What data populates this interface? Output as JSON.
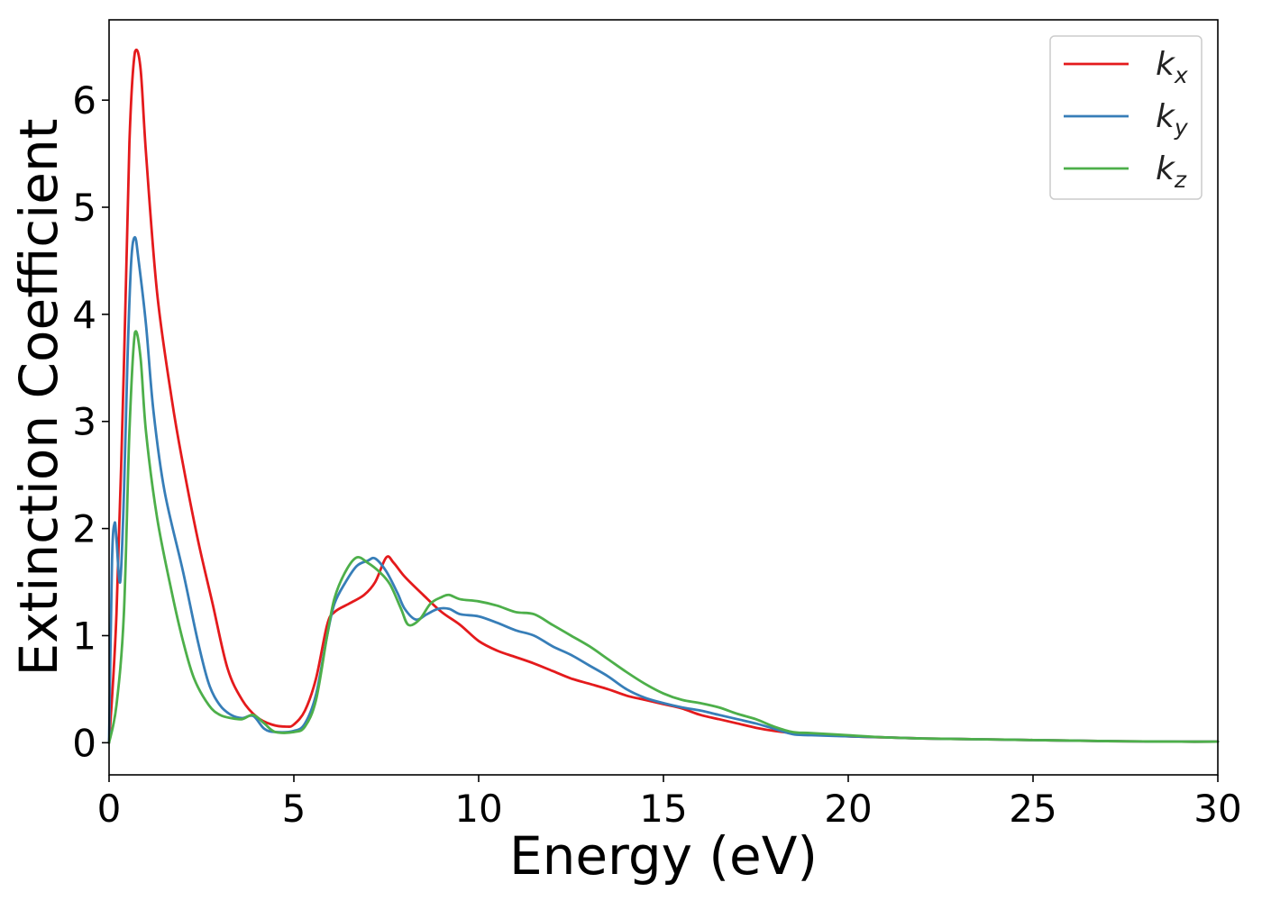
{
  "chart_data": {
    "type": "line",
    "xlabel": "Energy (eV)",
    "ylabel": "Extinction Coefficient",
    "xlim": [
      0,
      30
    ],
    "ylim": [
      -0.3,
      6.75
    ],
    "xticks": [
      "0",
      "5",
      "10",
      "15",
      "20",
      "25",
      "30"
    ],
    "yticks": [
      "0",
      "1",
      "2",
      "3",
      "4",
      "5",
      "6"
    ],
    "grid": false,
    "legend_position": "top-right",
    "series": [
      {
        "name": "k",
        "name_subscript": "x",
        "color": "#e41a1c",
        "x": [
          0,
          0.2,
          0.4,
          0.55,
          0.7,
          0.85,
          1.0,
          1.3,
          1.7,
          2.0,
          2.4,
          2.8,
          3.2,
          3.6,
          4.0,
          4.4,
          4.8,
          5.0,
          5.3,
          5.6,
          5.9,
          6.1,
          6.5,
          6.9,
          7.2,
          7.5,
          7.7,
          8.0,
          8.5,
          9.0,
          9.5,
          10.0,
          10.5,
          11.0,
          11.5,
          12.0,
          12.5,
          13.0,
          13.5,
          14.0,
          14.5,
          15.0,
          15.5,
          16.0,
          16.5,
          17.0,
          17.5,
          18.0,
          18.5,
          19.0,
          20.0,
          21.0,
          22.0,
          23.0,
          24.0,
          25.0,
          26.0,
          27.0,
          28.0,
          29.0,
          30.0
        ],
        "values": [
          0,
          1.2,
          3.5,
          5.6,
          6.45,
          6.3,
          5.5,
          4.2,
          3.2,
          2.6,
          1.9,
          1.3,
          0.7,
          0.4,
          0.24,
          0.17,
          0.15,
          0.17,
          0.3,
          0.6,
          1.1,
          1.22,
          1.3,
          1.38,
          1.5,
          1.73,
          1.68,
          1.55,
          1.38,
          1.22,
          1.1,
          0.95,
          0.86,
          0.8,
          0.74,
          0.67,
          0.6,
          0.55,
          0.5,
          0.44,
          0.4,
          0.36,
          0.32,
          0.26,
          0.22,
          0.18,
          0.14,
          0.11,
          0.09,
          0.08,
          0.06,
          0.05,
          0.04,
          0.035,
          0.03,
          0.025,
          0.02,
          0.015,
          0.012,
          0.01,
          0.01
        ]
      },
      {
        "name": "k",
        "name_subscript": "y",
        "color": "#377eb8",
        "x": [
          0,
          0.08,
          0.15,
          0.2,
          0.3,
          0.4,
          0.5,
          0.6,
          0.7,
          0.8,
          1.0,
          1.2,
          1.5,
          2.0,
          2.4,
          2.7,
          3.0,
          3.3,
          3.6,
          3.9,
          4.2,
          4.5,
          5.0,
          5.3,
          5.6,
          5.9,
          6.1,
          6.4,
          6.7,
          7.0,
          7.2,
          7.5,
          7.8,
          8.0,
          8.3,
          8.6,
          8.9,
          9.2,
          9.5,
          10.0,
          10.5,
          11.0,
          11.5,
          12.0,
          12.5,
          13.0,
          13.5,
          14.0,
          14.5,
          15.0,
          15.5,
          16.0,
          16.5,
          17.0,
          17.5,
          18.0,
          18.5,
          19.0,
          20.0,
          21.0,
          22.0,
          23.0,
          24.0,
          25.0,
          26.0,
          27.0,
          28.0,
          29.0,
          30.0
        ],
        "values": [
          0,
          1.7,
          2.05,
          1.9,
          1.5,
          2.3,
          3.6,
          4.5,
          4.72,
          4.5,
          3.9,
          3.1,
          2.35,
          1.6,
          0.95,
          0.55,
          0.35,
          0.26,
          0.23,
          0.25,
          0.13,
          0.1,
          0.11,
          0.18,
          0.45,
          1.0,
          1.3,
          1.5,
          1.65,
          1.7,
          1.72,
          1.6,
          1.4,
          1.25,
          1.15,
          1.2,
          1.25,
          1.25,
          1.2,
          1.18,
          1.12,
          1.05,
          1.0,
          0.9,
          0.82,
          0.72,
          0.62,
          0.5,
          0.42,
          0.37,
          0.33,
          0.3,
          0.26,
          0.22,
          0.18,
          0.13,
          0.08,
          0.07,
          0.06,
          0.05,
          0.04,
          0.035,
          0.03,
          0.025,
          0.02,
          0.015,
          0.012,
          0.01,
          0.01
        ]
      },
      {
        "name": "k",
        "name_subscript": "z",
        "color": "#4daf4a",
        "x": [
          0,
          0.2,
          0.4,
          0.55,
          0.7,
          0.85,
          1.0,
          1.3,
          1.7,
          2.0,
          2.3,
          2.7,
          3.0,
          3.3,
          3.6,
          3.9,
          4.2,
          4.5,
          5.0,
          5.3,
          5.6,
          5.9,
          6.1,
          6.4,
          6.7,
          7.0,
          7.3,
          7.6,
          7.9,
          8.1,
          8.4,
          8.7,
          9.0,
          9.2,
          9.5,
          10.0,
          10.5,
          11.0,
          11.5,
          12.0,
          12.5,
          13.0,
          13.5,
          14.0,
          14.5,
          15.0,
          15.5,
          16.0,
          16.5,
          17.0,
          17.5,
          18.0,
          18.5,
          19.0,
          20.0,
          21.0,
          22.0,
          23.0,
          24.0,
          25.0,
          26.0,
          27.0,
          28.0,
          29.0,
          30.0
        ],
        "values": [
          0,
          0.35,
          1.2,
          2.9,
          3.83,
          3.6,
          2.9,
          2.1,
          1.4,
          0.95,
          0.6,
          0.35,
          0.26,
          0.23,
          0.22,
          0.26,
          0.18,
          0.1,
          0.1,
          0.15,
          0.4,
          1.0,
          1.35,
          1.6,
          1.73,
          1.68,
          1.6,
          1.48,
          1.25,
          1.1,
          1.15,
          1.3,
          1.36,
          1.38,
          1.34,
          1.32,
          1.28,
          1.22,
          1.2,
          1.1,
          1.0,
          0.9,
          0.78,
          0.66,
          0.55,
          0.46,
          0.4,
          0.37,
          0.33,
          0.27,
          0.22,
          0.15,
          0.1,
          0.09,
          0.07,
          0.05,
          0.04,
          0.035,
          0.03,
          0.025,
          0.02,
          0.015,
          0.012,
          0.01,
          0.01
        ]
      }
    ]
  }
}
